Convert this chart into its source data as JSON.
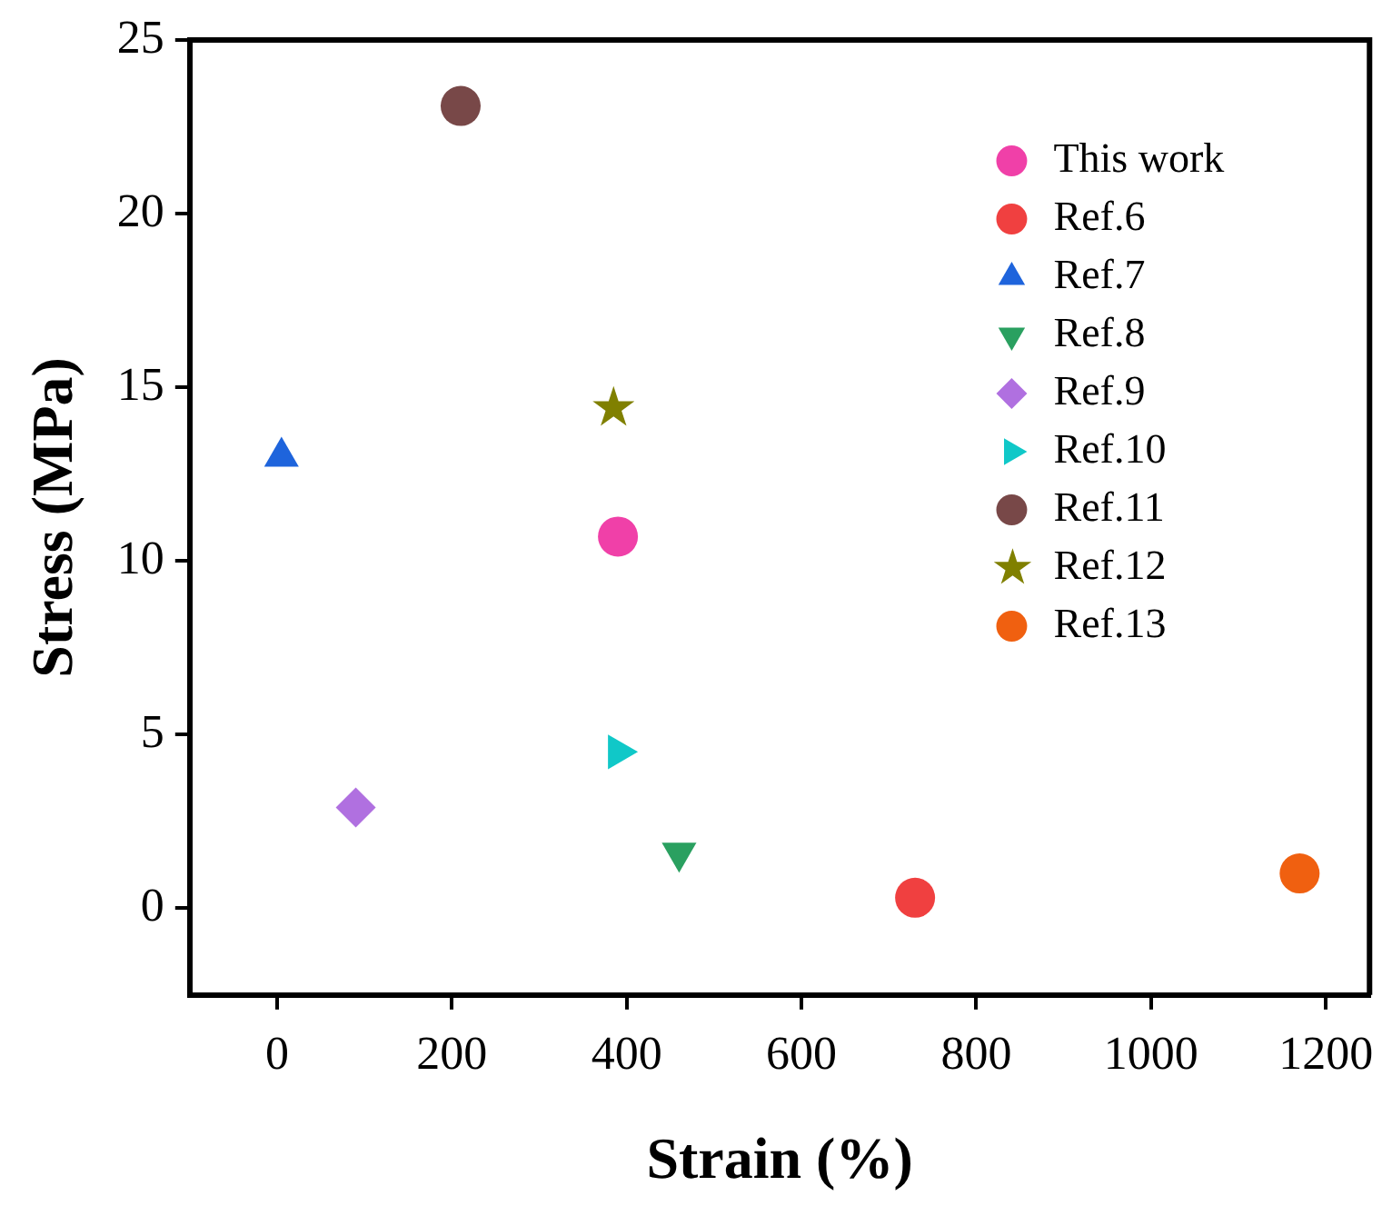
{
  "chart_data": {
    "type": "scatter",
    "xlabel": "Strain (%)",
    "ylabel": "Stress (MPa)",
    "xlim": [
      -100,
      1250
    ],
    "xticks": [
      0,
      200,
      400,
      600,
      800,
      1000,
      1200
    ],
    "ylim": [
      -2.5,
      25
    ],
    "yticks": [
      0,
      5,
      10,
      15,
      20,
      25
    ],
    "grid": false,
    "legend": "top right",
    "series": [
      {
        "name": "This work",
        "color": "#f040a8",
        "marker": "circle",
        "x": [
          390
        ],
        "values": [
          10.7
        ]
      },
      {
        "name": "Ref.6",
        "color": "#f04040",
        "marker": "circle",
        "x": [
          730
        ],
        "values": [
          0.3
        ]
      },
      {
        "name": "Ref.7",
        "color": "#1e64dc",
        "marker": "triangle",
        "x": [
          5
        ],
        "values": [
          13
        ]
      },
      {
        "name": "Ref.8",
        "color": "#2aa060",
        "marker": "triangle-down",
        "x": [
          460
        ],
        "values": [
          1.6
        ]
      },
      {
        "name": "Ref.9",
        "color": "#b070e0",
        "marker": "diamond",
        "x": [
          90
        ],
        "values": [
          2.9
        ]
      },
      {
        "name": "Ref.10",
        "color": "#10c8c8",
        "marker": "triangle-right",
        "x": [
          390
        ],
        "values": [
          4.5
        ]
      },
      {
        "name": "Ref.11",
        "color": "#784848",
        "x": [
          210
        ],
        "values": [
          23.1
        ]
      },
      {
        "name": "Ref.12",
        "color": "#808000",
        "marker": "star",
        "x": [
          385
        ],
        "values": [
          14.4
        ]
      },
      {
        "name": "Ref.13",
        "color": "#f06010",
        "x": [
          1170
        ],
        "values": [
          1.0
        ]
      }
    ]
  }
}
